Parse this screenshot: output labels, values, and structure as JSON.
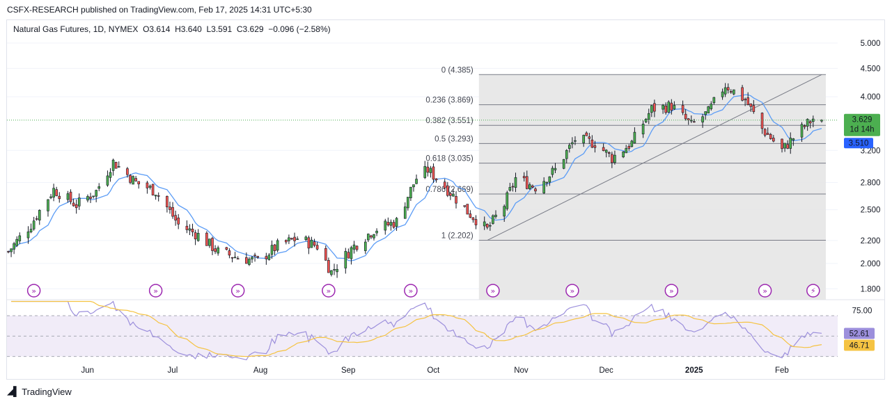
{
  "publisher_line": "CSFX-RESEARCH published on TradingView.com, Feb 17, 2025 14:31 UTC+5:30",
  "brand": "TradingView",
  "legend": {
    "symbol": "Natural Gas Futures, 1D, NYMEX",
    "open": "O3.614",
    "high": "H3.640",
    "low": "L3.591",
    "close": "C3.629",
    "change": "−0.096 (−2.58%)"
  },
  "colors": {
    "up": "#26a69a",
    "up_body": "#4caf50",
    "down": "#ef5350",
    "ma": "#5b9cf6",
    "rsi": "#9c8fdc",
    "rsi_ma": "#f5c342",
    "fib_zone": "#e6e6e6",
    "price_label": "#4caf50",
    "ma_label": "#2962ff"
  },
  "price_axis": {
    "ticks": [
      "5.000",
      "4.500",
      "4.000",
      "3.200",
      "2.800",
      "2.500",
      "2.200",
      "2.000",
      "1.800"
    ],
    "last_price": "3.629",
    "countdown": "1d 14h",
    "ma_value": "3.510"
  },
  "rsi_axis": {
    "ticks": [
      "75.00"
    ],
    "rsi_value": "52.61",
    "rsi_ma_value": "46.71"
  },
  "time_axis": [
    "Jun",
    "Jul",
    "Aug",
    "Sep",
    "Oct",
    "Nov",
    "Dec",
    "2025",
    "Feb"
  ],
  "fibonacci": [
    {
      "label": "0 (4.385)",
      "price": 4.385
    },
    {
      "label": "0.236 (3.869)",
      "price": 3.869
    },
    {
      "label": "0.382 (3.551)",
      "price": 3.551
    },
    {
      "label": "0.5 (3.293)",
      "price": 3.293
    },
    {
      "label": "0.618 (3.035)",
      "price": 3.035
    },
    {
      "label": "0.786 (2.669)",
      "price": 2.669
    },
    {
      "label": "1 (2.202)",
      "price": 2.202
    }
  ],
  "chart_data": {
    "type": "candlestick",
    "title": "Natural Gas Futures, 1D, NYMEX",
    "y_scale": "log",
    "ylim": [
      1.72,
      5.25
    ],
    "x_range": [
      "2024-05-06",
      "2025-02-17"
    ],
    "trendline": {
      "from": [
        "2024-10-22",
        2.202
      ],
      "to": [
        "2025-02-17",
        4.385
      ]
    },
    "events": [
      "2024-05-15",
      "2024-06-27",
      "2024-07-26",
      "2024-08-27",
      "2024-09-25",
      "2024-10-24",
      "2024-11-21",
      "2024-12-26",
      "2025-01-28",
      "2025-02-14"
    ],
    "ohlc_anchor": [
      [
        "2024-05-06",
        2.1
      ],
      [
        "2024-05-14",
        2.35
      ],
      [
        "2024-05-22",
        2.72
      ],
      [
        "2024-05-30",
        2.55
      ],
      [
        "2024-06-06",
        2.7
      ],
      [
        "2024-06-12",
        3.05
      ],
      [
        "2024-06-20",
        2.8
      ],
      [
        "2024-06-27",
        2.7
      ],
      [
        "2024-07-05",
        2.35
      ],
      [
        "2024-07-12",
        2.25
      ],
      [
        "2024-07-19",
        2.1
      ],
      [
        "2024-07-26",
        2.05
      ],
      [
        "2024-08-02",
        2.02
      ],
      [
        "2024-08-09",
        2.15
      ],
      [
        "2024-08-16",
        2.22
      ],
      [
        "2024-08-23",
        2.15
      ],
      [
        "2024-08-28",
        1.93
      ],
      [
        "2024-09-05",
        2.15
      ],
      [
        "2024-09-12",
        2.3
      ],
      [
        "2024-09-20",
        2.38
      ],
      [
        "2024-09-27",
        2.85
      ],
      [
        "2024-10-01",
        2.95
      ],
      [
        "2024-10-08",
        2.72
      ],
      [
        "2024-10-15",
        2.48
      ],
      [
        "2024-10-22",
        2.3
      ],
      [
        "2024-10-28",
        2.55
      ],
      [
        "2024-11-01",
        2.85
      ],
      [
        "2024-11-08",
        2.75
      ],
      [
        "2024-11-15",
        2.95
      ],
      [
        "2024-11-22",
        3.35
      ],
      [
        "2024-11-29",
        3.3
      ],
      [
        "2024-12-05",
        3.1
      ],
      [
        "2024-12-12",
        3.3
      ],
      [
        "2024-12-19",
        3.8
      ],
      [
        "2024-12-26",
        3.85
      ],
      [
        "2025-01-02",
        3.55
      ],
      [
        "2025-01-08",
        3.75
      ],
      [
        "2025-01-14",
        4.2
      ],
      [
        "2025-01-21",
        3.95
      ],
      [
        "2025-01-27",
        3.5
      ],
      [
        "2025-02-03",
        3.2
      ],
      [
        "2025-02-10",
        3.5
      ],
      [
        "2025-02-14",
        3.65
      ],
      [
        "2025-02-17",
        3.629
      ]
    ],
    "last": {
      "open": 3.614,
      "high": 3.64,
      "low": 3.591,
      "close": 3.629,
      "change": -0.096,
      "change_pct": -2.58
    },
    "moving_average_last": 3.51,
    "rsi": {
      "ylim": [
        25,
        85
      ],
      "band": [
        30,
        70
      ],
      "last": 52.61,
      "ma_last": 46.71,
      "tick": 75.0
    }
  }
}
